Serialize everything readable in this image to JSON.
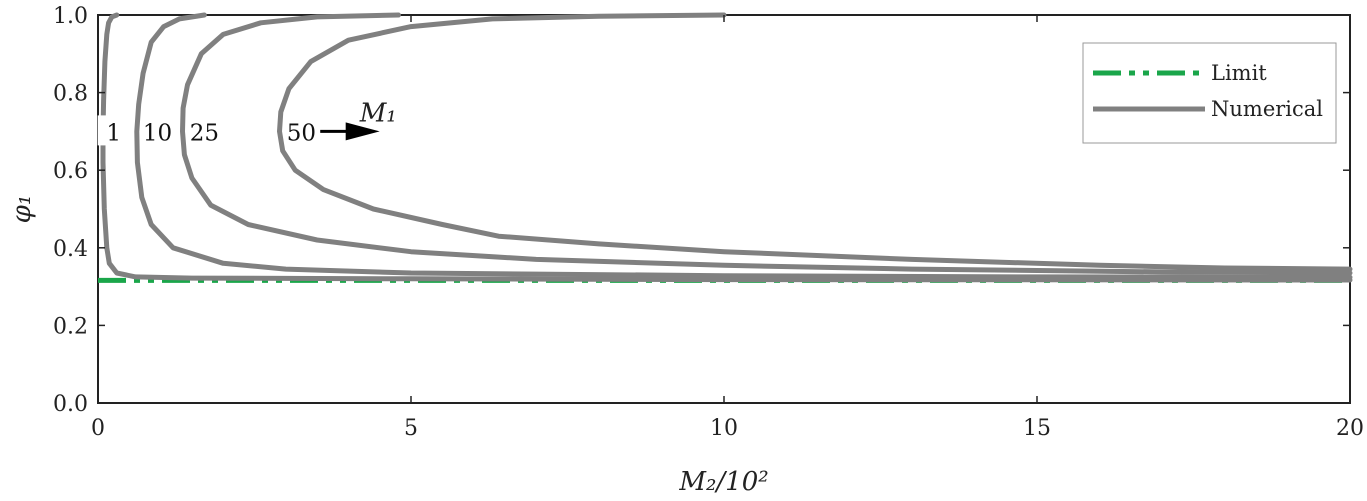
{
  "chart_data": {
    "type": "line",
    "xlabel": "M₂/10²",
    "ylabel": "φ₁",
    "xlim": [
      0,
      20
    ],
    "ylim": [
      0,
      1
    ],
    "x_ticks": [
      "0",
      "5",
      "10",
      "15",
      "20"
    ],
    "y_ticks": [
      "0.0",
      "0.2",
      "0.4",
      "0.6",
      "0.8",
      "1.0"
    ],
    "legend": {
      "placement": "top-right",
      "entries": [
        {
          "label": "Limit",
          "style": "dash-dot-dot",
          "color": "#1aa64a"
        },
        {
          "label": "Numerical",
          "style": "solid",
          "color": "#808080"
        }
      ]
    },
    "limit": {
      "name": "Limit",
      "y": 0.316,
      "color": "#1aa64a"
    },
    "series": [
      {
        "name": "Numerical",
        "label": "1",
        "color": "#808080",
        "points": [
          [
            0.3,
            1.0
          ],
          [
            0.22,
            0.995
          ],
          [
            0.17,
            0.98
          ],
          [
            0.14,
            0.95
          ],
          [
            0.11,
            0.88
          ],
          [
            0.09,
            0.78
          ],
          [
            0.08,
            0.7
          ],
          [
            0.08,
            0.62
          ],
          [
            0.1,
            0.5
          ],
          [
            0.14,
            0.4
          ],
          [
            0.18,
            0.36
          ],
          [
            0.3,
            0.335
          ],
          [
            0.6,
            0.325
          ],
          [
            1.5,
            0.322
          ],
          [
            5,
            0.32
          ],
          [
            10,
            0.318
          ],
          [
            20,
            0.317
          ]
        ]
      },
      {
        "name": "Numerical",
        "label": "10",
        "color": "#808080",
        "points": [
          [
            1.7,
            1.0
          ],
          [
            1.3,
            0.99
          ],
          [
            1.05,
            0.97
          ],
          [
            0.85,
            0.93
          ],
          [
            0.72,
            0.85
          ],
          [
            0.65,
            0.77
          ],
          [
            0.62,
            0.7
          ],
          [
            0.63,
            0.62
          ],
          [
            0.7,
            0.53
          ],
          [
            0.85,
            0.46
          ],
          [
            1.2,
            0.4
          ],
          [
            2,
            0.36
          ],
          [
            3,
            0.345
          ],
          [
            5,
            0.335
          ],
          [
            10,
            0.328
          ],
          [
            15,
            0.325
          ],
          [
            20,
            0.324
          ]
        ]
      },
      {
        "name": "Numerical",
        "label": "25",
        "color": "#808080",
        "points": [
          [
            4.8,
            1.0
          ],
          [
            3.5,
            0.995
          ],
          [
            2.6,
            0.98
          ],
          [
            2.0,
            0.95
          ],
          [
            1.65,
            0.9
          ],
          [
            1.43,
            0.82
          ],
          [
            1.36,
            0.76
          ],
          [
            1.35,
            0.7
          ],
          [
            1.38,
            0.64
          ],
          [
            1.5,
            0.58
          ],
          [
            1.8,
            0.51
          ],
          [
            2.4,
            0.46
          ],
          [
            3.5,
            0.42
          ],
          [
            5,
            0.39
          ],
          [
            7,
            0.37
          ],
          [
            10,
            0.355
          ],
          [
            13,
            0.345
          ],
          [
            17,
            0.338
          ],
          [
            20,
            0.335
          ]
        ]
      },
      {
        "name": "Numerical",
        "label": "50",
        "color": "#808080",
        "points": [
          [
            10,
            1.0
          ],
          [
            8,
            0.997
          ],
          [
            6.3,
            0.99
          ],
          [
            5.0,
            0.97
          ],
          [
            4.0,
            0.935
          ],
          [
            3.4,
            0.88
          ],
          [
            3.05,
            0.81
          ],
          [
            2.92,
            0.75
          ],
          [
            2.9,
            0.7
          ],
          [
            2.95,
            0.65
          ],
          [
            3.15,
            0.6
          ],
          [
            3.6,
            0.55
          ],
          [
            4.4,
            0.5
          ],
          [
            5.5,
            0.46
          ],
          [
            6.4,
            0.43
          ],
          [
            8,
            0.41
          ],
          [
            10,
            0.39
          ],
          [
            13,
            0.37
          ],
          [
            16,
            0.355
          ],
          [
            18,
            0.348
          ],
          [
            20,
            0.345
          ]
        ]
      }
    ],
    "curve_labels": [
      {
        "text": "1",
        "x": 0.25,
        "y": 0.7
      },
      {
        "text": "10",
        "x": 0.95,
        "y": 0.7
      },
      {
        "text": "25",
        "x": 1.7,
        "y": 0.7
      },
      {
        "text": "50",
        "x": 3.25,
        "y": 0.7
      }
    ],
    "arrow": {
      "label": "M₁",
      "x_start": 3.55,
      "x_end": 4.5,
      "y": 0.7
    }
  }
}
